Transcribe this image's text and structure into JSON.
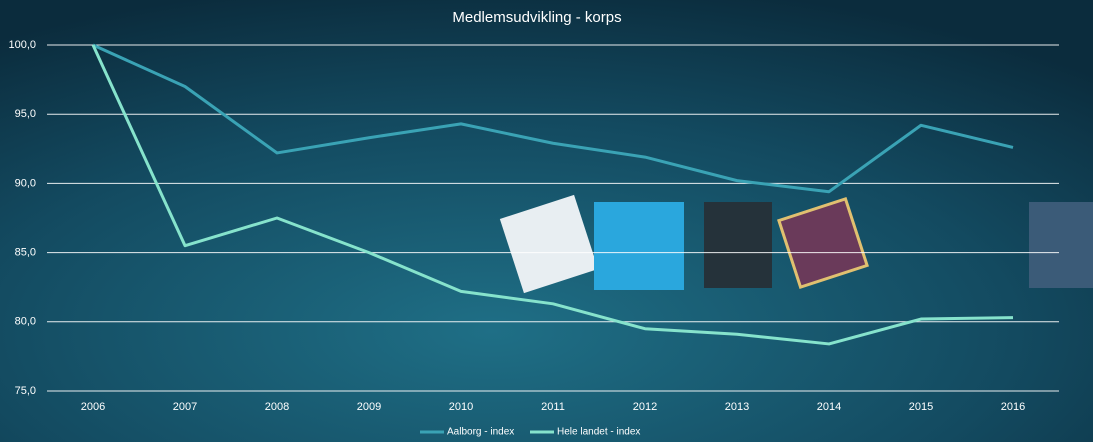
{
  "chart_data": {
    "type": "line",
    "title": "Medlemsudvikling - korps",
    "categories": [
      "2006",
      "2007",
      "2008",
      "2009",
      "2010",
      "2011",
      "2012",
      "2013",
      "2014",
      "2015",
      "2016"
    ],
    "series": [
      {
        "name": "Aalborg - index",
        "color": "#3aa3b5",
        "values": [
          100,
          97.0,
          92.2,
          93.3,
          94.3,
          92.9,
          91.9,
          90.2,
          89.4,
          94.2,
          92.6
        ]
      },
      {
        "name": "Hele landet - index",
        "color": "#86e3cc",
        "values": [
          100,
          85.5,
          87.5,
          85.0,
          82.2,
          81.3,
          79.5,
          79.1,
          78.4,
          80.2,
          80.3
        ]
      }
    ],
    "ylim": [
      75,
      100
    ],
    "yticks": [
      {
        "value": 75,
        "label": "75,0"
      },
      {
        "value": 80,
        "label": "80,0"
      },
      {
        "value": 85,
        "label": "85,0"
      },
      {
        "value": 90,
        "label": "90,0"
      },
      {
        "value": 95,
        "label": "95,0"
      },
      {
        "value": 100,
        "label": "100,0"
      }
    ],
    "grid": true,
    "legend": "bottom"
  }
}
